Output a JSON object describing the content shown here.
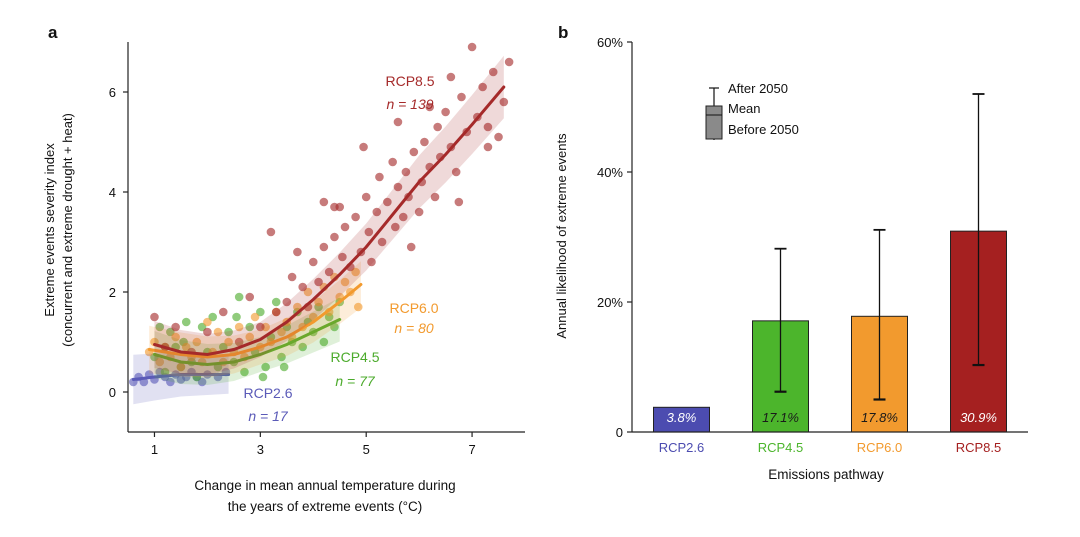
{
  "panel_a_label": "a",
  "panel_b_label": "b",
  "chart_data": [
    {
      "type": "scatter",
      "title": "",
      "xlabel_line1": "Change in mean annual temperature during",
      "xlabel_line2": "the years of extreme events (°C)",
      "ylabel_line1": "Extreme events severity index",
      "ylabel_line2": "(concurrent and extreme drought + heat)",
      "xlim": [
        0.5,
        8.0
      ],
      "ylim": [
        -0.8,
        7.0
      ],
      "x_ticks": [
        1,
        3,
        5,
        7
      ],
      "y_ticks": [
        0,
        2,
        4,
        6
      ],
      "series": [
        {
          "name": "RCP2.6",
          "n_label": "n = 17",
          "color": "#5b5bb8",
          "fit_x": [
            0.6,
            1.0,
            1.5,
            2.0,
            2.4
          ],
          "fit_y": [
            0.25,
            0.3,
            0.35,
            0.35,
            0.35
          ],
          "points": [
            [
              0.6,
              0.2
            ],
            [
              0.7,
              0.3
            ],
            [
              0.8,
              0.2
            ],
            [
              0.9,
              0.35
            ],
            [
              1.0,
              0.25
            ],
            [
              1.1,
              0.4
            ],
            [
              1.2,
              0.3
            ],
            [
              1.3,
              0.2
            ],
            [
              1.4,
              0.35
            ],
            [
              1.5,
              0.25
            ],
            [
              1.6,
              0.3
            ],
            [
              1.7,
              0.4
            ],
            [
              1.8,
              0.3
            ],
            [
              1.9,
              0.2
            ],
            [
              2.0,
              0.35
            ],
            [
              2.2,
              0.3
            ],
            [
              2.35,
              0.4
            ]
          ]
        },
        {
          "name": "RCP4.5",
          "n_label": "n = 77",
          "color": "#4cab2c",
          "fit_x": [
            1.0,
            1.5,
            2.0,
            2.5,
            3.0,
            3.5,
            4.0,
            4.5
          ],
          "fit_y": [
            0.75,
            0.6,
            0.55,
            0.6,
            0.75,
            0.95,
            1.2,
            1.45
          ],
          "points": [
            [
              1.0,
              0.7
            ],
            [
              1.1,
              1.3
            ],
            [
              1.2,
              0.4
            ],
            [
              1.3,
              1.2
            ],
            [
              1.4,
              0.9
            ],
            [
              1.5,
              0.5
            ],
            [
              1.6,
              1.4
            ],
            [
              1.7,
              0.6
            ],
            [
              1.8,
              0.3
            ],
            [
              1.9,
              1.3
            ],
            [
              2.0,
              0.8
            ],
            [
              2.1,
              1.5
            ],
            [
              2.2,
              0.5
            ],
            [
              2.3,
              0.9
            ],
            [
              2.4,
              1.2
            ],
            [
              2.5,
              0.6
            ],
            [
              2.6,
              1.9
            ],
            [
              2.7,
              0.4
            ],
            [
              2.8,
              1.3
            ],
            [
              2.9,
              0.8
            ],
            [
              3.0,
              1.6
            ],
            [
              3.1,
              0.5
            ],
            [
              3.2,
              1.1
            ],
            [
              3.3,
              1.8
            ],
            [
              3.4,
              0.7
            ],
            [
              3.5,
              1.3
            ],
            [
              3.6,
              1.0
            ],
            [
              3.7,
              1.6
            ],
            [
              3.8,
              0.9
            ],
            [
              3.9,
              1.4
            ],
            [
              4.0,
              1.2
            ],
            [
              4.1,
              1.7
            ],
            [
              4.2,
              1.0
            ],
            [
              4.3,
              1.5
            ],
            [
              4.4,
              1.3
            ],
            [
              4.5,
              1.8
            ],
            [
              2.55,
              1.5
            ],
            [
              3.05,
              0.3
            ],
            [
              3.45,
              0.5
            ],
            [
              1.55,
              1.0
            ]
          ]
        },
        {
          "name": "RCP6.0",
          "n_label": "n = 80",
          "color": "#f29a2e",
          "fit_x": [
            0.9,
            1.5,
            2.0,
            2.5,
            3.0,
            3.5,
            4.0,
            4.5,
            4.9
          ],
          "fit_y": [
            0.85,
            0.75,
            0.7,
            0.75,
            0.9,
            1.1,
            1.4,
            1.8,
            2.15
          ],
          "points": [
            [
              0.9,
              0.8
            ],
            [
              1.0,
              1.0
            ],
            [
              1.1,
              0.6
            ],
            [
              1.2,
              0.9
            ],
            [
              1.3,
              0.7
            ],
            [
              1.4,
              1.1
            ],
            [
              1.5,
              0.5
            ],
            [
              1.6,
              0.9
            ],
            [
              1.7,
              0.7
            ],
            [
              1.8,
              1.0
            ],
            [
              1.9,
              0.6
            ],
            [
              2.0,
              1.4
            ],
            [
              2.1,
              0.8
            ],
            [
              2.2,
              1.2
            ],
            [
              2.3,
              0.6
            ],
            [
              2.4,
              1.0
            ],
            [
              2.5,
              0.8
            ],
            [
              2.6,
              1.3
            ],
            [
              2.7,
              0.7
            ],
            [
              2.8,
              1.1
            ],
            [
              2.9,
              1.5
            ],
            [
              3.0,
              0.9
            ],
            [
              3.1,
              1.3
            ],
            [
              3.2,
              1.0
            ],
            [
              3.3,
              1.6
            ],
            [
              3.4,
              1.2
            ],
            [
              3.5,
              1.4
            ],
            [
              3.6,
              1.1
            ],
            [
              3.7,
              1.7
            ],
            [
              3.8,
              1.3
            ],
            [
              3.9,
              2.0
            ],
            [
              4.0,
              1.5
            ],
            [
              4.1,
              1.8
            ],
            [
              4.2,
              2.1
            ],
            [
              4.3,
              1.6
            ],
            [
              4.4,
              2.3
            ],
            [
              4.5,
              1.9
            ],
            [
              4.6,
              2.2
            ],
            [
              4.7,
              2.0
            ],
            [
              4.8,
              2.4
            ],
            [
              4.85,
              1.7
            ]
          ]
        },
        {
          "name": "RCP8.5",
          "n_label": "n = 139",
          "color": "#a52a2a",
          "fit_x": [
            1.0,
            1.5,
            2.0,
            2.5,
            3.0,
            3.5,
            4.0,
            4.5,
            5.0,
            5.5,
            6.0,
            6.5,
            7.0,
            7.6
          ],
          "fit_y": [
            0.95,
            0.8,
            0.75,
            0.85,
            1.05,
            1.4,
            1.85,
            2.35,
            2.9,
            3.55,
            4.2,
            4.75,
            5.35,
            6.1
          ],
          "points": [
            [
              1.0,
              1.5
            ],
            [
              1.2,
              0.9
            ],
            [
              1.4,
              1.3
            ],
            [
              1.7,
              0.8
            ],
            [
              2.0,
              1.2
            ],
            [
              2.3,
              1.6
            ],
            [
              2.6,
              1.0
            ],
            [
              2.8,
              1.9
            ],
            [
              3.0,
              1.3
            ],
            [
              3.2,
              3.2
            ],
            [
              3.3,
              1.6
            ],
            [
              3.5,
              1.8
            ],
            [
              3.6,
              2.3
            ],
            [
              3.8,
              2.1
            ],
            [
              3.9,
              1.7
            ],
            [
              4.0,
              2.6
            ],
            [
              4.1,
              2.2
            ],
            [
              4.2,
              2.9
            ],
            [
              4.3,
              2.4
            ],
            [
              4.4,
              3.1
            ],
            [
              4.5,
              3.7
            ],
            [
              4.55,
              2.7
            ],
            [
              4.6,
              3.3
            ],
            [
              4.7,
              2.5
            ],
            [
              4.8,
              3.5
            ],
            [
              4.9,
              2.8
            ],
            [
              5.0,
              3.9
            ],
            [
              5.05,
              3.2
            ],
            [
              5.1,
              2.6
            ],
            [
              5.2,
              3.6
            ],
            [
              5.25,
              4.3
            ],
            [
              5.3,
              3.0
            ],
            [
              5.4,
              3.8
            ],
            [
              5.5,
              4.6
            ],
            [
              5.55,
              3.3
            ],
            [
              5.6,
              4.1
            ],
            [
              5.7,
              3.5
            ],
            [
              5.75,
              4.4
            ],
            [
              5.8,
              3.9
            ],
            [
              5.9,
              4.8
            ],
            [
              6.0,
              3.6
            ],
            [
              6.05,
              4.2
            ],
            [
              6.1,
              5.0
            ],
            [
              6.2,
              4.5
            ],
            [
              6.3,
              3.9
            ],
            [
              6.35,
              5.3
            ],
            [
              6.4,
              4.7
            ],
            [
              6.5,
              5.6
            ],
            [
              6.6,
              4.9
            ],
            [
              6.7,
              4.4
            ],
            [
              6.8,
              5.9
            ],
            [
              6.9,
              5.2
            ],
            [
              7.0,
              6.9
            ],
            [
              7.1,
              5.5
            ],
            [
              7.2,
              6.1
            ],
            [
              7.3,
              5.3
            ],
            [
              7.4,
              6.4
            ],
            [
              7.5,
              5.1
            ],
            [
              7.6,
              5.8
            ],
            [
              7.7,
              6.6
            ],
            [
              4.2,
              3.8
            ],
            [
              4.4,
              3.7
            ],
            [
              5.6,
              5.4
            ],
            [
              6.2,
              5.7
            ],
            [
              6.6,
              6.3
            ],
            [
              7.3,
              4.9
            ],
            [
              3.7,
              2.8
            ],
            [
              4.95,
              4.9
            ],
            [
              5.85,
              2.9
            ],
            [
              6.75,
              3.8
            ]
          ]
        }
      ]
    },
    {
      "type": "bar",
      "title": "",
      "xlabel": "Emissions pathway",
      "ylabel": "Annual likelihood of extreme events",
      "ylim": [
        0,
        60
      ],
      "y_ticks": [
        "0",
        "20%",
        "40%",
        "60%"
      ],
      "categories": [
        "RCP2.6",
        "RCP4.5",
        "RCP6.0",
        "RCP8.5"
      ],
      "values": [
        3.8,
        17.1,
        17.8,
        30.9
      ],
      "value_labels": [
        "3.8%",
        "17.1%",
        "17.8%",
        "30.9%"
      ],
      "colors": [
        "#4c4cb0",
        "#4cb52c",
        "#f29a2e",
        "#a52020"
      ],
      "label_colors": [
        "#ffffff",
        "#1a1a1a",
        "#1a1a1a",
        "#ffffff"
      ],
      "after_2050": [
        null,
        28.2,
        31.1,
        52.0
      ],
      "before_2050": [
        null,
        6.2,
        5.0,
        10.3
      ],
      "legend": {
        "after": "After 2050",
        "mean": "Mean",
        "before": "Before 2050"
      }
    }
  ]
}
